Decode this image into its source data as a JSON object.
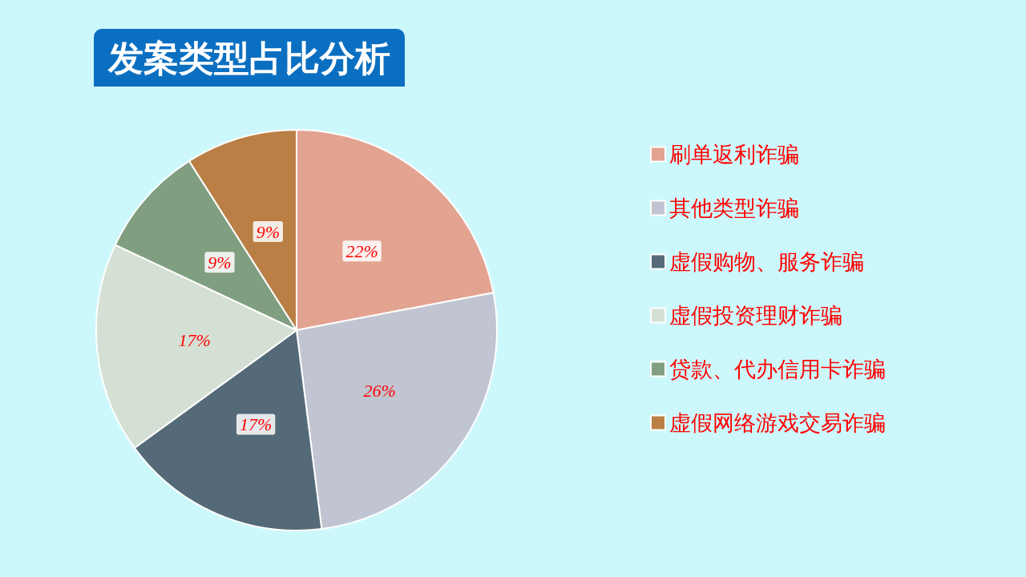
{
  "chart_data": {
    "type": "pie",
    "title": "发案类型占比分析",
    "categories": [
      "刷单返利诈骗",
      "其他类型诈骗",
      "虚假购物、服务诈骗",
      "虚假投资理财诈骗",
      "贷款、代办信用卡诈骗",
      "虚假网络游戏交易诈骗"
    ],
    "values": [
      22,
      26,
      17,
      17,
      9,
      9
    ],
    "value_labels": [
      "22%",
      "26%",
      "17%",
      "17%",
      "9%",
      "9%"
    ],
    "colors": [
      "#e3a391",
      "#c1c5d1",
      "#546a78",
      "#d4e0d4",
      "#7f9f80",
      "#b97f45"
    ],
    "legend": "right"
  }
}
